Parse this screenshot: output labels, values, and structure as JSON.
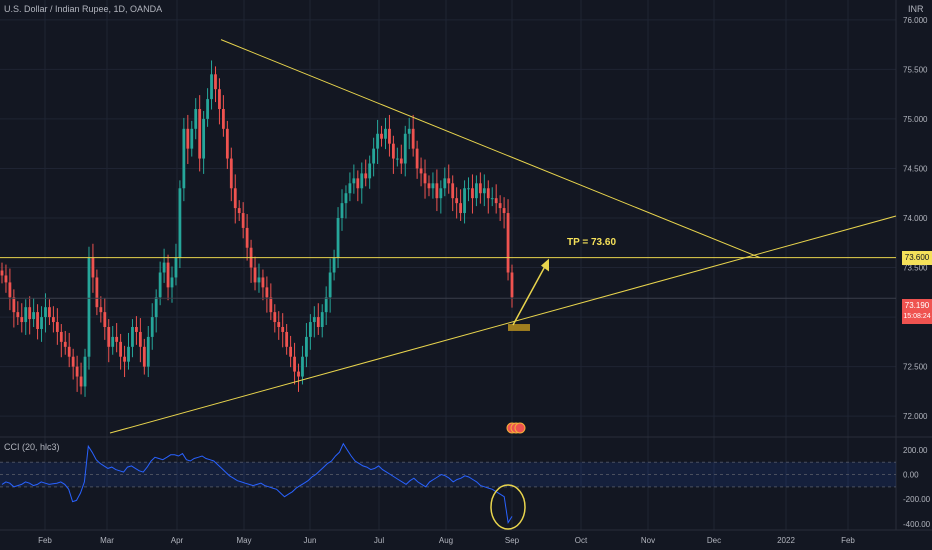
{
  "chart_data": [
    {
      "type": "candlestick",
      "title": "U.S. Dollar / Indian Rupee, 1D, OANDA",
      "unit": "INR",
      "ylim": [
        71.8,
        76.2
      ],
      "yticks": [
        72.0,
        72.5,
        73.0,
        73.5,
        74.0,
        74.5,
        75.0,
        75.5,
        76.0
      ],
      "xticks": [
        "Feb",
        "Mar",
        "Apr",
        "May",
        "Jun",
        "Jul",
        "Aug",
        "Sep",
        "Oct",
        "Nov",
        "Dec",
        "2022",
        "Feb"
      ],
      "close_series": [
        73.42,
        73.35,
        73.2,
        73.05,
        73.0,
        72.95,
        73.1,
        72.98,
        73.05,
        72.88,
        73.0,
        73.1,
        73.0,
        72.95,
        72.85,
        72.75,
        72.7,
        72.6,
        72.5,
        72.4,
        72.3,
        72.6,
        73.6,
        73.4,
        73.1,
        73.05,
        72.9,
        72.7,
        72.8,
        72.75,
        72.6,
        72.55,
        72.7,
        72.9,
        72.85,
        72.7,
        72.5,
        72.8,
        73.0,
        73.2,
        73.45,
        73.55,
        73.3,
        73.4,
        73.6,
        74.3,
        74.9,
        74.7,
        74.9,
        75.1,
        74.6,
        75.0,
        75.2,
        75.45,
        75.3,
        75.1,
        74.9,
        74.6,
        74.3,
        74.1,
        74.05,
        73.9,
        73.7,
        73.5,
        73.35,
        73.4,
        73.3,
        73.2,
        73.05,
        72.95,
        72.9,
        72.85,
        72.7,
        72.6,
        72.45,
        72.4,
        72.6,
        72.8,
        72.95,
        73.0,
        72.9,
        73.05,
        73.2,
        73.45,
        73.6,
        74.0,
        74.15,
        74.25,
        74.35,
        74.4,
        74.3,
        74.45,
        74.4,
        74.55,
        74.7,
        74.85,
        74.8,
        74.9,
        74.75,
        74.6,
        74.6,
        74.55,
        74.85,
        74.9,
        74.7,
        74.5,
        74.45,
        74.35,
        74.3,
        74.35,
        74.2,
        74.3,
        74.4,
        74.35,
        74.2,
        74.15,
        74.05,
        74.3,
        74.3,
        74.2,
        74.35,
        74.25,
        74.3,
        74.2,
        74.2,
        74.15,
        74.1,
        74.05,
        73.45,
        73.2
      ],
      "last_price": "73.190",
      "countdown": "15:08:24",
      "level_label": "73.600",
      "level": 73.6,
      "annotation": "TP = 73.60",
      "colors": {
        "up": "#26a69a",
        "down": "#ef5350",
        "trendline": "#e8d44d",
        "background": "#131722"
      }
    },
    {
      "type": "line",
      "title": "CCI (20, hlc3)",
      "ylim": [
        -450,
        280
      ],
      "yticks": [
        200.0,
        0.0,
        -200.0,
        -400.0
      ],
      "ytick_labels": [
        "200.00",
        "0.00",
        "-200.00",
        "-400.00"
      ],
      "band": [
        100,
        -100
      ],
      "values": [
        -80,
        -60,
        -70,
        -100,
        -90,
        -80,
        -60,
        -70,
        -90,
        -80,
        -60,
        -70,
        -80,
        -75,
        -70,
        -60,
        -80,
        -120,
        -220,
        -210,
        -150,
        -60,
        230,
        180,
        120,
        90,
        70,
        50,
        60,
        40,
        30,
        20,
        60,
        70,
        50,
        30,
        20,
        60,
        110,
        140,
        130,
        120,
        140,
        160,
        160,
        150,
        170,
        120,
        110,
        130,
        140,
        150,
        130,
        120,
        110,
        80,
        50,
        20,
        -10,
        -30,
        -50,
        -60,
        -70,
        -80,
        -90,
        -80,
        -70,
        -90,
        -100,
        -110,
        -120,
        -150,
        -180,
        -160,
        -140,
        -110,
        -90,
        -70,
        -50,
        -20,
        0,
        30,
        60,
        90,
        110,
        150,
        180,
        250,
        200,
        150,
        110,
        90,
        70,
        60,
        40,
        50,
        70,
        40,
        20,
        0,
        -20,
        -40,
        -60,
        -80,
        -50,
        -30,
        -60,
        -80,
        -100,
        -60,
        -40,
        -20,
        0,
        -10,
        -30,
        -60,
        -40,
        -30,
        -10,
        -20,
        -40,
        -60,
        -90,
        -100,
        -110,
        -120,
        -140,
        -160,
        -180,
        -390,
        -340
      ],
      "colors": {
        "line": "#2962ff",
        "band": "rgba(41,98,255,0.12)"
      }
    }
  ]
}
